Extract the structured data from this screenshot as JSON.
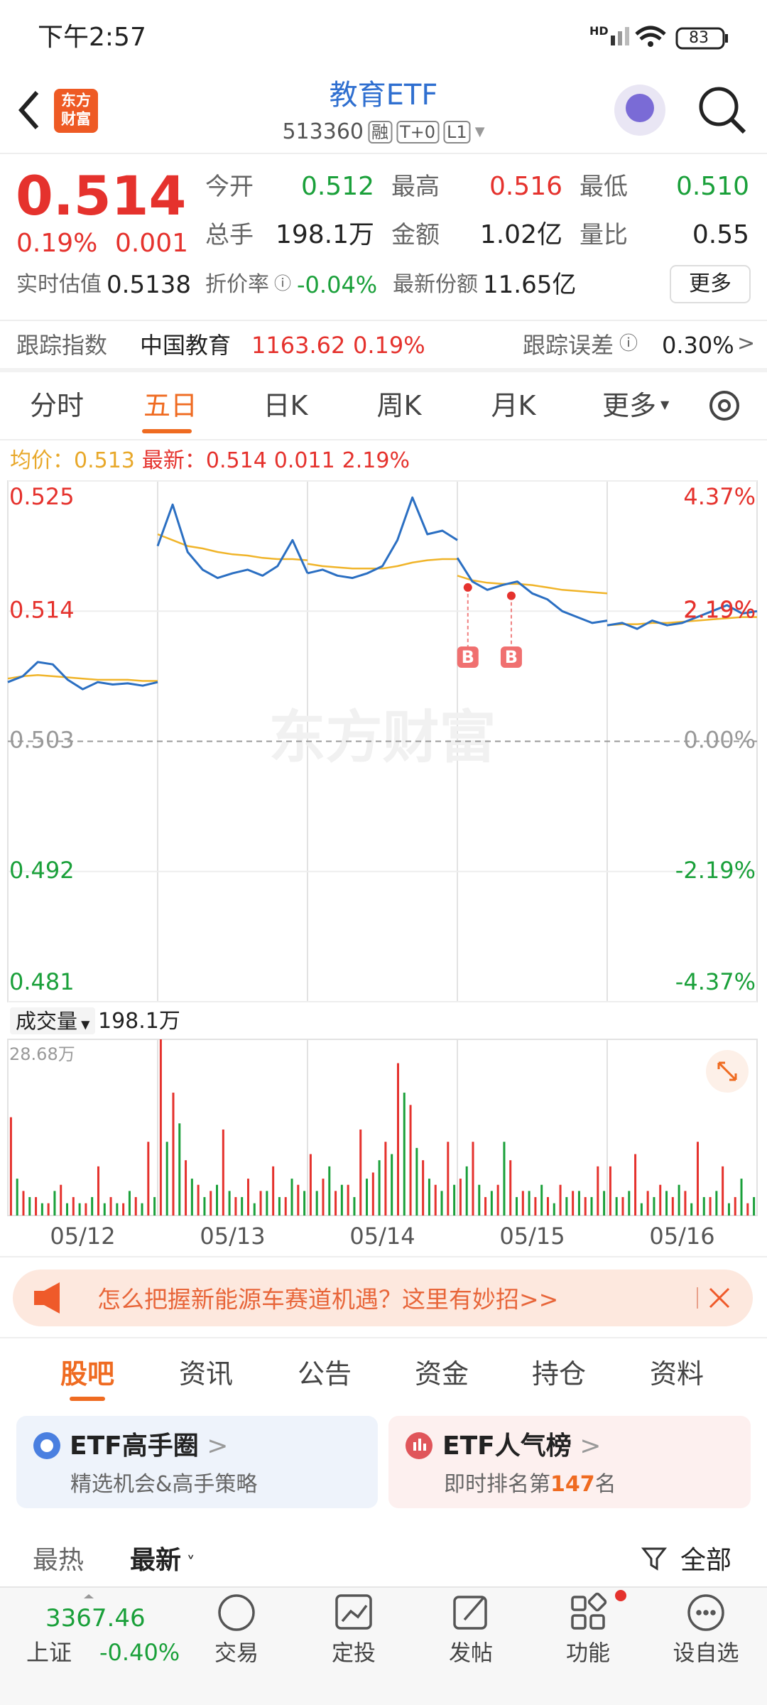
{
  "status": {
    "time": "下午2:57",
    "battery": "83",
    "network": "HD"
  },
  "header": {
    "logo": [
      "东方",
      "财富"
    ],
    "title": "教育ETF",
    "code": "513360",
    "tags": [
      "融",
      "T+0",
      "L1"
    ]
  },
  "quote": {
    "price": "0.514",
    "pct": "0.19%",
    "change": "0.001",
    "fields": [
      {
        "label": "今开",
        "value": "0.512"
      },
      {
        "label": "最高",
        "value": "0.516"
      },
      {
        "label": "最低",
        "value": "0.510"
      },
      {
        "label": "总手",
        "value": "198.1万"
      },
      {
        "label": "金额",
        "value": "1.02亿"
      },
      {
        "label": "量比",
        "value": "0.55"
      }
    ],
    "estimate": {
      "label": "实时估值",
      "value": "0.5138"
    },
    "premium": {
      "label": "折价率",
      "value": "-0.04%"
    },
    "shares": {
      "label": "最新份额",
      "value": "11.65亿"
    },
    "more": "更多"
  },
  "track": {
    "label": "跟踪指数",
    "index": "中国教育",
    "value": "1163.62",
    "pct": "0.19%",
    "error_label": "跟踪误差",
    "error": "0.30%"
  },
  "tabs": [
    "分时",
    "五日",
    "日K",
    "周K",
    "月K",
    "更多"
  ],
  "chart_data": {
    "type": "line",
    "watermark": "东方财富",
    "legend": {
      "avg_label": "均价：",
      "avg": "0.513",
      "last_label": "最新：",
      "last": "0.514",
      "change": "0.011",
      "pct": "2.19%"
    },
    "price_color": "#2b6fc2",
    "avg_color": "#f0b429",
    "up_color": "#e5322d",
    "down_color": "#1aa03a",
    "ylim": [
      0.481,
      0.525
    ],
    "yticks": [
      0.525,
      0.514,
      0.503,
      0.492,
      0.481
    ],
    "y2lim": [
      -4.37,
      4.37
    ],
    "y2ticks": [
      {
        "value": 4.37,
        "label": "4.37%"
      },
      {
        "value": 2.19,
        "label": "2.19%"
      },
      {
        "value": 0,
        "label": "0.00%"
      },
      {
        "value": -2.19,
        "label": "-2.19%"
      },
      {
        "value": -4.37,
        "label": "-4.37%"
      }
    ],
    "volume_label": "成交量",
    "volume_total": "198.1万",
    "vlim": [
      0,
      28.68
    ],
    "vticks": [
      {
        "value": 28.68,
        "label": "28.68万"
      }
    ],
    "trades": [
      {
        "x": 3.07,
        "price": 0.516,
        "label": "B"
      },
      {
        "x": 3.36,
        "price": 0.5153,
        "label": "B"
      }
    ],
    "days": [
      {
        "date": "05/12",
        "price": [
          0.508,
          0.5085,
          0.5097,
          0.5095,
          0.5082,
          0.5074,
          0.508,
          0.5078,
          0.5079,
          0.5077,
          0.508
        ],
        "avg": [
          0.5083,
          0.5085,
          0.5086,
          0.5085,
          0.5084,
          0.5083,
          0.5082,
          0.5082,
          0.5082,
          0.5081,
          0.5081
        ],
        "volume_up": [
          16,
          4,
          3,
          2,
          5,
          3,
          2,
          8,
          3,
          2,
          3,
          12
        ],
        "volume_down": [
          6,
          3,
          2,
          4,
          2,
          2,
          3,
          2,
          2,
          4,
          2,
          3
        ]
      },
      {
        "date": "05/13",
        "price": [
          0.5195,
          0.523,
          0.519,
          0.5175,
          0.5168,
          0.5172,
          0.5175,
          0.517,
          0.5178,
          0.52,
          0.5172
        ],
        "avg": [
          0.5205,
          0.52,
          0.5195,
          0.5193,
          0.519,
          0.5188,
          0.5187,
          0.5185,
          0.5184,
          0.5184,
          0.5183
        ],
        "volume_up": [
          28.68,
          20,
          9,
          5,
          4,
          14,
          3,
          6,
          4,
          8,
          3,
          5
        ],
        "volume_down": [
          12,
          15,
          6,
          3,
          5,
          4,
          3,
          2,
          4,
          3,
          6,
          4
        ]
      },
      {
        "date": "05/14",
        "price": [
          0.5172,
          0.5175,
          0.517,
          0.5168,
          0.5172,
          0.5178,
          0.52,
          0.5236,
          0.5205,
          0.5208,
          0.52
        ],
        "avg": [
          0.518,
          0.5178,
          0.5177,
          0.5176,
          0.5176,
          0.5176,
          0.5178,
          0.5181,
          0.5183,
          0.5184,
          0.5184
        ],
        "volume_up": [
          10,
          6,
          4,
          5,
          14,
          7,
          12,
          24.8,
          18,
          9,
          5,
          12
        ],
        "volume_down": [
          4,
          8,
          5,
          3,
          6,
          9,
          10,
          20,
          11,
          6,
          4,
          5
        ]
      },
      {
        "date": "05/15",
        "price": [
          0.5185,
          0.5165,
          0.5158,
          0.5162,
          0.5165,
          0.5155,
          0.515,
          0.514,
          0.5135,
          0.513,
          0.5132
        ],
        "avg": [
          0.517,
          0.5166,
          0.5164,
          0.5163,
          0.5163,
          0.5162,
          0.516,
          0.5158,
          0.5157,
          0.5156,
          0.5155
        ],
        "volume_up": [
          6,
          12,
          3,
          5,
          9,
          4,
          3,
          3,
          5,
          4,
          3,
          8
        ],
        "volume_down": [
          8,
          5,
          4,
          12,
          3,
          4,
          5,
          2,
          3,
          4,
          3,
          4
        ]
      },
      {
        "date": "05/16",
        "price": [
          0.5128,
          0.513,
          0.5125,
          0.5132,
          0.5128,
          0.513,
          0.5135,
          0.514,
          0.5145,
          0.5138,
          0.514
        ],
        "avg": [
          0.5128,
          0.5129,
          0.5129,
          0.513,
          0.513,
          0.5131,
          0.5132,
          0.5133,
          0.5134,
          0.5135,
          0.5135
        ],
        "volume_up": [
          8,
          3,
          10,
          4,
          5,
          3,
          4,
          12,
          3,
          8,
          3,
          2
        ],
        "volume_down": [
          3,
          4,
          2,
          3,
          4,
          5,
          2,
          3,
          4,
          2,
          6,
          3
        ]
      }
    ]
  },
  "banner": "怎么把握新能源车赛道机遇？这里有妙招>>",
  "subtabs": [
    "股吧",
    "资讯",
    "公告",
    "资金",
    "持仓",
    "资料"
  ],
  "cards": [
    {
      "title": "ETF高手圈",
      "subtitle": "精选机会&高手策略"
    },
    {
      "title": "ETF人气榜",
      "subtitle_pre": "即时排名第",
      "rank": "147",
      "subtitle_post": "名"
    }
  ],
  "sort": {
    "hot": "最热",
    "latest": "最新",
    "filter": "全部"
  },
  "footer": {
    "index_value": "3367.46",
    "index_name": "上证",
    "index_pct": "-0.40%",
    "nav": [
      "交易",
      "定投",
      "发帖",
      "功能",
      "设自选"
    ]
  }
}
